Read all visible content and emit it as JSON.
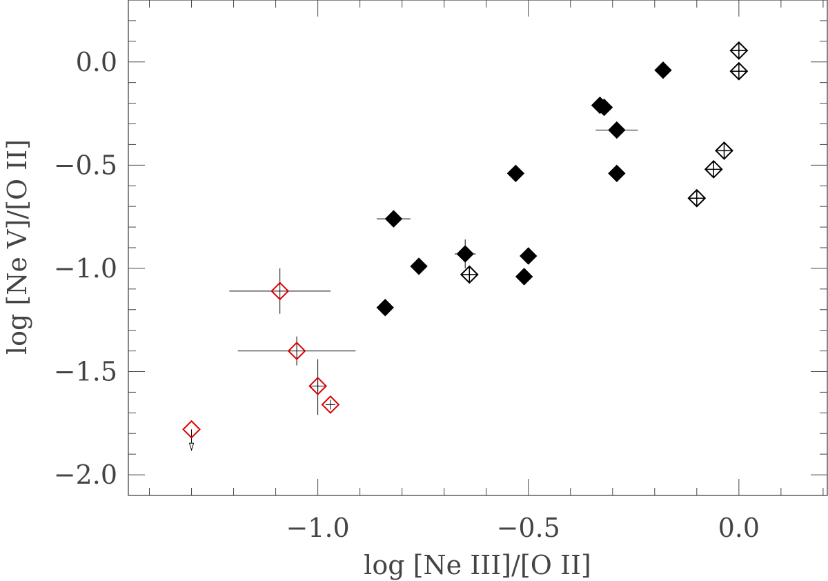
{
  "chart_data": {
    "type": "scatter",
    "xlabel": "log [Ne III]/[O II]",
    "ylabel": "log [Ne V]/[O II]",
    "xlim": [
      -1.45,
      0.21
    ],
    "ylim": [
      -2.1,
      0.3
    ],
    "x_ticks": [
      -1.0,
      -0.5,
      0.0
    ],
    "x_tick_labels": [
      "−1.0",
      "−0.5",
      "0.0"
    ],
    "y_ticks": [
      -2.0,
      -1.5,
      -1.0,
      -0.5,
      0.0
    ],
    "y_tick_labels": [
      "−2.0",
      "−1.5",
      "−1.0",
      "−0.5",
      "0.0"
    ],
    "x_minor_step": 0.1,
    "y_minor_step": 0.1,
    "grid": false,
    "legend": "none",
    "colors": {
      "filled": "#000000",
      "open_cross": "#000000",
      "red": "#dd0000",
      "errorbar": "#000000",
      "axis": "#444444"
    },
    "series": [
      {
        "marker": "filled-diamond",
        "color": "#000000",
        "points": [
          {
            "x": -0.84,
            "y": -1.19
          },
          {
            "x": -0.82,
            "y": -0.76,
            "xerr": [
              0.04,
              0.04
            ]
          },
          {
            "x": -0.76,
            "y": -0.99
          },
          {
            "x": -0.65,
            "y": -0.93,
            "xerr": [
              0.025,
              0.025
            ],
            "yerr": [
              0.07,
              0.07
            ]
          },
          {
            "x": -0.53,
            "y": -0.54
          },
          {
            "x": -0.5,
            "y": -0.94
          },
          {
            "x": -0.51,
            "y": -1.04
          },
          {
            "x": -0.33,
            "y": -0.21
          },
          {
            "x": -0.32,
            "y": -0.22
          },
          {
            "x": -0.29,
            "y": -0.33,
            "xerr": [
              0.05,
              0.05
            ]
          },
          {
            "x": -0.29,
            "y": -0.54
          },
          {
            "x": -0.18,
            "y": -0.04
          }
        ]
      },
      {
        "marker": "open-diamond-cross",
        "color": "#000000",
        "points": [
          {
            "x": -0.64,
            "y": -1.03
          },
          {
            "x": -0.1,
            "y": -0.66
          },
          {
            "x": -0.06,
            "y": -0.52
          },
          {
            "x": -0.035,
            "y": -0.43
          },
          {
            "x": 0.0,
            "y": -0.045
          },
          {
            "x": 0.0,
            "y": 0.055
          }
        ]
      },
      {
        "marker": "red-open-diamond",
        "color": "#dd0000",
        "points": [
          {
            "x": -1.09,
            "y": -1.11,
            "xerr": [
              0.12,
              0.12
            ],
            "yerr": [
              0.11,
              0.11
            ]
          },
          {
            "x": -1.05,
            "y": -1.4,
            "xerr": [
              0.14,
              0.14
            ],
            "yerr": [
              0.07,
              0.07
            ]
          },
          {
            "x": -1.0,
            "y": -1.57,
            "xerr": [
              0.02,
              0.02
            ],
            "yerr": [
              0.14,
              0.13
            ],
            "cross": true
          },
          {
            "x": -0.97,
            "y": -1.66,
            "cross": true
          },
          {
            "x": -1.3,
            "y": -1.78,
            "upper_limit": true
          }
        ]
      }
    ]
  }
}
